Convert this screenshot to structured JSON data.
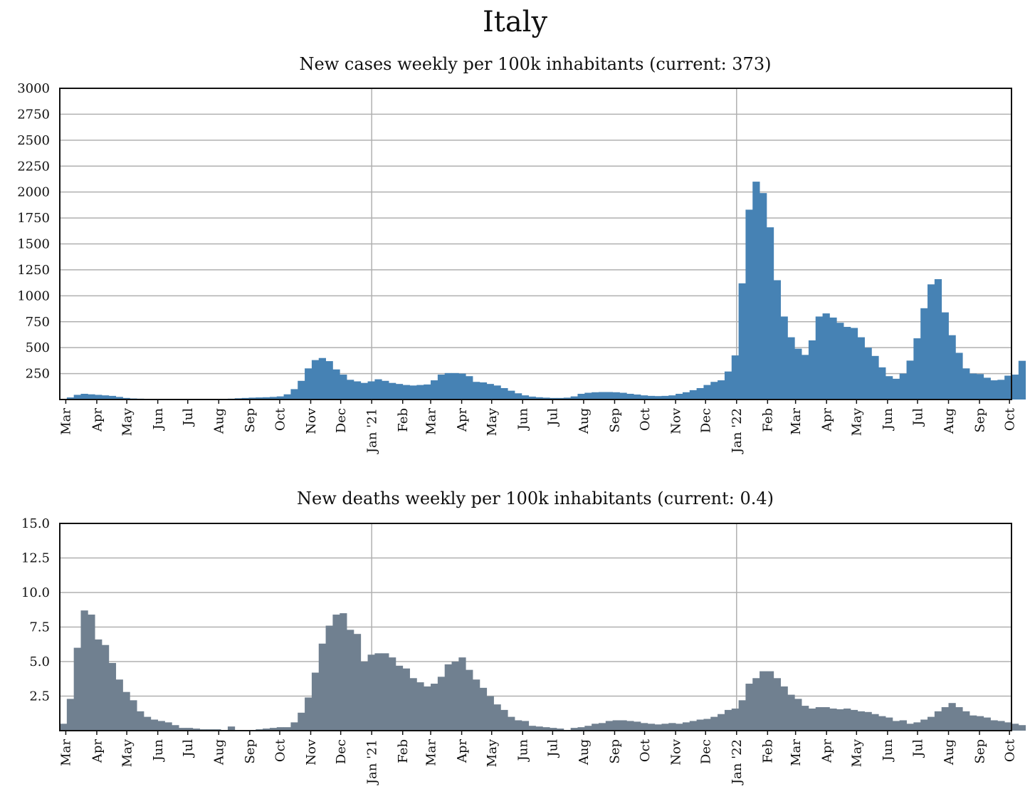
{
  "figure": {
    "title": "Italy"
  },
  "chart_data": [
    {
      "type": "bar",
      "title": "New cases weekly per 100k inhabitants (current: 373)",
      "color": "#4682b4",
      "xlabel": "",
      "ylabel": "",
      "ylim": [
        0,
        3000
      ],
      "yticks": [
        "250",
        "500",
        "750",
        "1000",
        "1250",
        "1500",
        "1750",
        "2000",
        "2250",
        "2500",
        "2750",
        "3000"
      ],
      "ytick_values": [
        250,
        500,
        750,
        1000,
        1250,
        1500,
        1750,
        2000,
        2250,
        2500,
        2750,
        3000
      ],
      "grid": true,
      "x_start": "2020-02-24",
      "bin_days": 7,
      "month_ticks": [
        "Mar",
        "Apr",
        "May",
        "Jun",
        "Jul",
        "Aug",
        "Sep",
        "Oct",
        "Nov",
        "Dec",
        "Jan '21",
        "Feb",
        "Mar",
        "Apr",
        "May",
        "Jun",
        "Jul",
        "Aug",
        "Sep",
        "Oct",
        "Nov",
        "Dec",
        "Jan '22",
        "Feb",
        "Mar",
        "Apr",
        "May",
        "Jun",
        "Jul",
        "Aug",
        "Sep",
        "Oct"
      ],
      "year_lines": [
        "Jan '21",
        "Jan '22"
      ],
      "values": [
        5,
        20,
        45,
        55,
        50,
        45,
        40,
        35,
        25,
        15,
        10,
        8,
        5,
        3,
        2,
        2,
        1,
        1,
        1,
        1,
        1,
        2,
        3,
        5,
        8,
        12,
        15,
        18,
        20,
        22,
        25,
        30,
        50,
        100,
        180,
        300,
        380,
        400,
        370,
        290,
        240,
        190,
        175,
        160,
        175,
        195,
        180,
        160,
        150,
        140,
        135,
        140,
        145,
        185,
        240,
        255,
        255,
        250,
        225,
        170,
        165,
        150,
        135,
        110,
        85,
        60,
        40,
        28,
        22,
        18,
        15,
        15,
        18,
        30,
        55,
        65,
        70,
        72,
        72,
        70,
        65,
        55,
        48,
        40,
        35,
        33,
        35,
        40,
        55,
        70,
        90,
        110,
        140,
        170,
        185,
        270,
        425,
        1120,
        1830,
        2100,
        1990,
        1660,
        1150,
        800,
        600,
        490,
        430,
        570,
        800,
        830,
        790,
        740,
        700,
        690,
        600,
        500,
        420,
        310,
        225,
        200,
        250,
        375,
        590,
        880,
        1110,
        1160,
        840,
        620,
        450,
        300,
        250,
        245,
        210,
        185,
        190,
        230,
        240,
        373
      ]
    },
    {
      "type": "bar",
      "title": "New deaths weekly per 100k inhabitants (current: 0.4)",
      "color": "#708090",
      "xlabel": "",
      "ylabel": "",
      "ylim": [
        0,
        15
      ],
      "yticks": [
        "2.5",
        "5.0",
        "7.5",
        "10.0",
        "12.5",
        "15.0"
      ],
      "ytick_values": [
        2.5,
        5.0,
        7.5,
        10.0,
        12.5,
        15.0
      ],
      "grid": true,
      "x_start": "2020-02-24",
      "bin_days": 7,
      "month_ticks": [
        "Mar",
        "Apr",
        "May",
        "Jun",
        "Jul",
        "Aug",
        "Sep",
        "Oct",
        "Nov",
        "Dec",
        "Jan '21",
        "Feb",
        "Mar",
        "Apr",
        "May",
        "Jun",
        "Jul",
        "Aug",
        "Sep",
        "Oct",
        "Nov",
        "Dec",
        "Jan '22",
        "Feb",
        "Mar",
        "Apr",
        "May",
        "Jun",
        "Jul",
        "Aug",
        "Sep",
        "Oct"
      ],
      "year_lines": [
        "Jan '21",
        "Jan '22"
      ],
      "values": [
        0.5,
        2.3,
        6.0,
        8.7,
        8.4,
        6.6,
        6.2,
        4.9,
        3.7,
        2.8,
        2.2,
        1.4,
        1.0,
        0.8,
        0.7,
        0.6,
        0.4,
        0.2,
        0.2,
        0.15,
        0.1,
        0.1,
        0.1,
        0.05,
        0.3,
        0.05,
        0.05,
        0.05,
        0.1,
        0.15,
        0.2,
        0.25,
        0.25,
        0.6,
        1.3,
        2.4,
        4.2,
        6.3,
        7.6,
        8.4,
        8.5,
        7.3,
        7.0,
        5.0,
        5.5,
        5.6,
        5.6,
        5.3,
        4.7,
        4.5,
        3.8,
        3.5,
        3.2,
        3.4,
        3.9,
        4.8,
        5.0,
        5.3,
        4.4,
        3.7,
        3.1,
        2.5,
        1.9,
        1.5,
        1.0,
        0.75,
        0.7,
        0.35,
        0.3,
        0.25,
        0.2,
        0.15,
        0.05,
        0.2,
        0.25,
        0.35,
        0.5,
        0.55,
        0.7,
        0.75,
        0.75,
        0.7,
        0.65,
        0.55,
        0.5,
        0.45,
        0.5,
        0.55,
        0.5,
        0.6,
        0.7,
        0.8,
        0.85,
        1.0,
        1.2,
        1.5,
        1.6,
        2.2,
        3.4,
        3.8,
        4.3,
        4.3,
        3.8,
        3.2,
        2.6,
        2.3,
        1.8,
        1.6,
        1.7,
        1.7,
        1.6,
        1.55,
        1.6,
        1.5,
        1.4,
        1.35,
        1.2,
        1.05,
        0.95,
        0.7,
        0.75,
        0.5,
        0.6,
        0.8,
        1.0,
        1.4,
        1.7,
        2.0,
        1.7,
        1.4,
        1.1,
        1.05,
        0.95,
        0.75,
        0.7,
        0.6,
        0.5,
        0.4
      ]
    }
  ]
}
